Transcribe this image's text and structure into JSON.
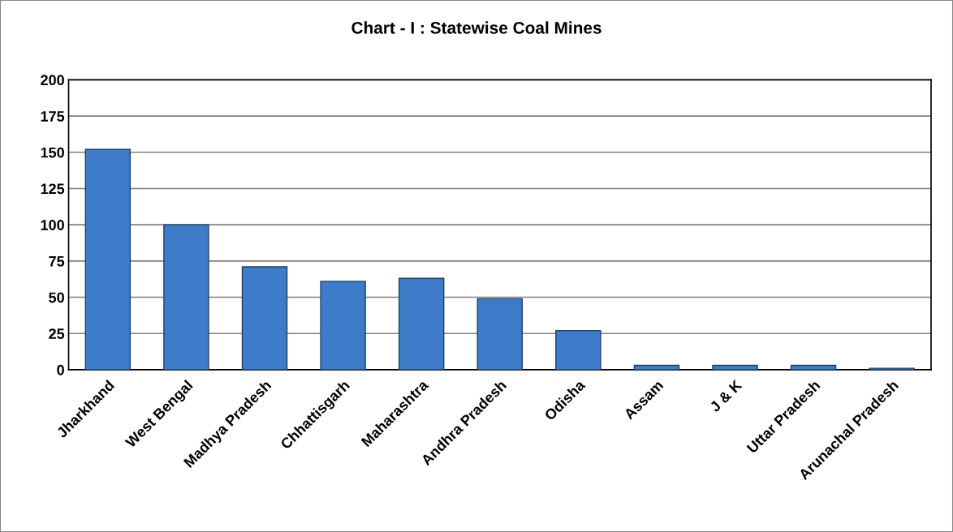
{
  "chart_data": {
    "type": "bar",
    "title": "Chart - I : Statewise Coal Mines",
    "categories": [
      "Jharkhand",
      "West Bengal",
      "Madhya Pradesh",
      "Chhattisgarh",
      "Maharashtra",
      "Andhra Pradesh",
      "Odisha",
      "Assam",
      "J & K",
      "Uttar Pradesh",
      "Arunachal Pradesh"
    ],
    "values": [
      152,
      100,
      71,
      61,
      63,
      49,
      27,
      3,
      3,
      3,
      1
    ],
    "color": "#3e7cc9",
    "ylim": [
      0,
      200
    ],
    "yticks": [
      0,
      25,
      50,
      75,
      100,
      125,
      150,
      175,
      200
    ],
    "grid": "y"
  }
}
